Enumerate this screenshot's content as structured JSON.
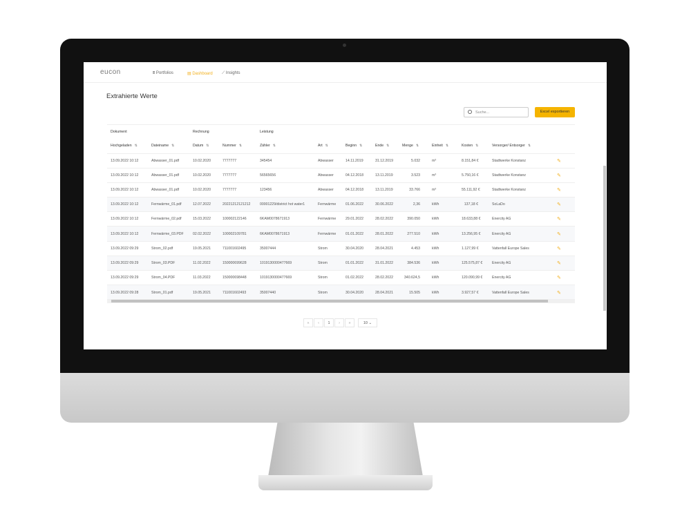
{
  "app": {
    "logo": "eucon",
    "nav": [
      {
        "label": "Portfolios",
        "icon": "org-chart-icon"
      },
      {
        "label": "Dashboard",
        "icon": "dashboard-icon",
        "active": true
      },
      {
        "label": "Insights",
        "icon": "line-chart-icon"
      }
    ],
    "accent": "#f5b400"
  },
  "page": {
    "title": "Extrahierte Werte",
    "search_placeholder": "Suche...",
    "export_label": "Excel exportieren"
  },
  "table": {
    "groups": [
      "Dokument",
      "Rechnung",
      "Leistung"
    ],
    "columns": [
      "Hochgeladen",
      "Dateiname",
      "Datum",
      "Nummer",
      "Zähler",
      "Art",
      "Beginn",
      "Ende",
      "Menge",
      "Einheit",
      "Kosten",
      "Versorger/ Entsorger"
    ],
    "rows": [
      [
        "13.09.2022 10:12",
        "Abwasser_01.pdf",
        "10.02.2020",
        "7777777",
        "345454",
        "Abwasser",
        "14.11.2019",
        "31.12.2019",
        "5.032",
        "m³",
        "8.151,84 €",
        "Stadtwerke Konstanz"
      ],
      [
        "13.09.2022 10:12",
        "Abwasser_01.pdf",
        "10.02.2020",
        "7777777",
        "56565656",
        "Abwasser",
        "04.12.2018",
        "13.11.2019",
        "3.523",
        "m³",
        "5.750,16 €",
        "Stadtwerke Konstanz"
      ],
      [
        "13.09.2022 10:12",
        "Abwasser_01.pdf",
        "10.02.2020",
        "7777777",
        "123456",
        "Abwasser",
        "04.12.2018",
        "13.11.2019",
        "33.766",
        "m³",
        "55.111,92 €",
        "Stadtwerke Konstanz"
      ],
      [
        "13.09.2022 10:12",
        "Fernwärme_01.pdf",
        "12.07.2022",
        "20221212121212",
        "00001229/district hot water1",
        "Fernwärme",
        "01.06.2022",
        "30.06.2022",
        "2,36",
        "kWh",
        "137,18 €",
        "SoLaDo"
      ],
      [
        "13.09.2022 10:12",
        "Fernwärme_02.pdf",
        "15.03.2022",
        "100002122146",
        "6KAM0078671913",
        "Fernwärme",
        "29.01.2022",
        "28.02.2022",
        "390.050",
        "kWh",
        "18.633,88 €",
        "Enercity AG"
      ],
      [
        "13.09.2022 10:12",
        "Fernwärme_03.PDF",
        "02.02.2022",
        "100002109781",
        "6KAM0078671913",
        "Fernwärme",
        "01.01.2022",
        "28.01.2022",
        "277.510",
        "kWh",
        "13.256,95 €",
        "Enercity AG"
      ],
      [
        "13.09.2022 09:29",
        "Strom_02.pdf",
        "19.05.2021",
        "711001602495",
        "35007444",
        "Strom",
        "30.04.2020",
        "28.04.2021",
        "4.453",
        "kWh",
        "1.127,99 €",
        "Vattenfall Europe Sales"
      ],
      [
        "13.09.2022 09:29",
        "Strom_03.PDF",
        "11.02.2022",
        "150000699628",
        "1019130000477669",
        "Strom",
        "01.01.2022",
        "31.01.2022",
        "384.536",
        "kWh",
        "125.575,87 €",
        "Enercity AG"
      ],
      [
        "13.09.2022 09:29",
        "Strom_04.PDF",
        "11.03.2022",
        "150000698448",
        "1019130000477669",
        "Strom",
        "01.02.2022",
        "28.02.2022",
        "340.624,5",
        "kWh",
        "120.090,99 €",
        "Enercity AG"
      ],
      [
        "13.09.2022 09:28",
        "Strom_01.pdf",
        "19.05.2021",
        "711001602493",
        "35007440",
        "Strom",
        "30.04.2020",
        "28.04.2021",
        "15.505",
        "kWh",
        "3.927,57 €",
        "Vattenfall Europe Sales"
      ]
    ]
  },
  "pagination": {
    "first": "«",
    "prev": "‹",
    "page": "1",
    "next": "›",
    "last": "»",
    "page_size": "10"
  }
}
